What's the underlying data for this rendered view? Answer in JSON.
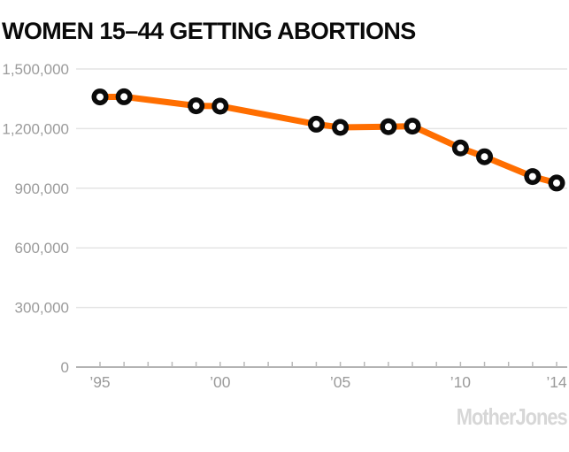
{
  "title": "WOMEN 15–44 GETTING ABORTIONS",
  "watermark": "MotherJones",
  "colors": {
    "line": "#ff6e00",
    "marker": "#0b0b0b",
    "marker_hole": "#ffffff",
    "grid": "#e4e4e4",
    "axis": "#b3b3b3",
    "tick": "#b9b9b9",
    "label": "#9b9b9b",
    "title": "#0a0a0a",
    "watermark": "#d7d7d7"
  },
  "chart_data": {
    "type": "line",
    "title": "WOMEN 15–44 GETTING ABORTIONS",
    "x": [
      1995,
      1996,
      1999,
      2000,
      2004,
      2005,
      2007,
      2008,
      2010,
      2011,
      2013,
      2014
    ],
    "values": [
      1359400,
      1360160,
      1314800,
      1313000,
      1222100,
      1206200,
      1209640,
      1212350,
      1102670,
      1058490,
      958700,
      926190
    ],
    "xlabel": "",
    "ylabel": "",
    "ylim": [
      0,
      1500000
    ],
    "ytick_interval": 300000,
    "ytick_labels": [
      "0",
      "300,000",
      "600,000",
      "900,000",
      "1,200,000",
      "1,500,000"
    ],
    "xlim": [
      1995,
      2014
    ],
    "xtick_years_minor": [
      1995,
      1996,
      1997,
      1998,
      1999,
      2000,
      2001,
      2002,
      2003,
      2004,
      2005,
      2006,
      2007,
      2008,
      2009,
      2010,
      2011,
      2012,
      2013,
      2014
    ],
    "xtick_labels": [
      {
        "year": 1995,
        "label": "’95"
      },
      {
        "year": 2000,
        "label": "’00"
      },
      {
        "year": 2005,
        "label": "’05"
      },
      {
        "year": 2010,
        "label": "’10"
      },
      {
        "year": 2014,
        "label": "’14"
      }
    ],
    "grid": "horizontal",
    "legend": "none"
  }
}
